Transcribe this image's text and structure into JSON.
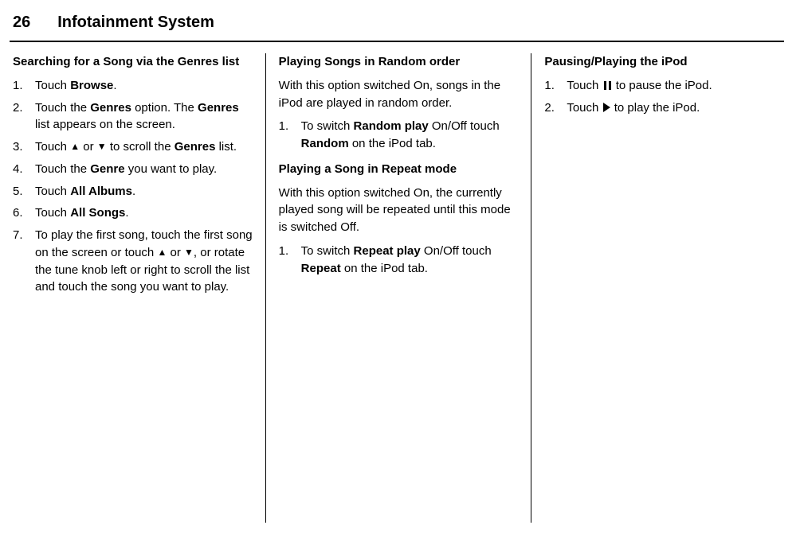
{
  "header": {
    "page_number": "26",
    "title": "Infotainment System"
  },
  "col1": {
    "heading": "Searching for a Song via the Genres list",
    "steps": {
      "s1_a": "Touch ",
      "s1_b": "Browse",
      "s1_c": ".",
      "s2_a": "Touch the ",
      "s2_b": "Genres",
      "s2_c": " option. The ",
      "s2_d": "Genres",
      "s2_e": " list appears on the screen.",
      "s3_a": "Touch ",
      "s3_or": " or ",
      "s3_b": " to scroll the ",
      "s3_c": "Genres",
      "s3_d": " list.",
      "s4_a": "Touch the ",
      "s4_b": "Genre",
      "s4_c": " you want to play.",
      "s5_a": "Touch ",
      "s5_b": "All Albums",
      "s5_c": ".",
      "s6_a": "Touch ",
      "s6_b": "All Songs",
      "s6_c": ".",
      "s7_a": "To play the first song, touch the first song on the screen or touch ",
      "s7_or": " or ",
      "s7_b": ", or rotate the tune knob left or right to scroll the list and touch the song you want to play."
    }
  },
  "col2": {
    "heading1": "Playing Songs in Random order",
    "p1": "With this option switched On, songs in the iPod are played in random order.",
    "r1_a": "To switch ",
    "r1_b": "Random play",
    "r1_c": " On/Off touch ",
    "r1_d": "Random",
    "r1_e": " on the iPod tab.",
    "heading2": "Playing a Song in Repeat mode",
    "p2": "With this option switched On, the currently played song will be repeated until this mode is switched Off.",
    "rp1_a": "To switch ",
    "rp1_b": "Repeat play",
    "rp1_c": " On/Off touch ",
    "rp1_d": "Repeat",
    "rp1_e": " on the iPod tab."
  },
  "col3": {
    "heading": "Pausing/Playing the iPod",
    "s1_a": "Touch ",
    "s1_b": " to pause the iPod.",
    "s2_a": "Touch ",
    "s2_b": " to play the iPod."
  }
}
